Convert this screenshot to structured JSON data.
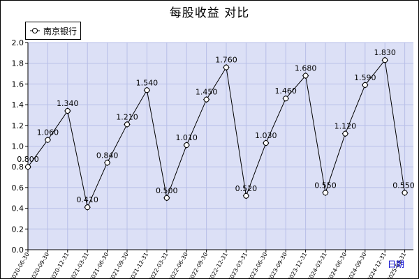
{
  "window": {
    "title": "每股收益  对比"
  },
  "colors": {
    "plot_background": "#dce0f6",
    "grid": "#b8bfe8",
    "line": "#000000",
    "marker_fill": "#ffffff",
    "axis_title": "#0000cc"
  },
  "chart_data": {
    "type": "line",
    "title": "每股收益  对比",
    "xlabel": "日期",
    "ylabel": "",
    "ylim": [
      0.0,
      2.0
    ],
    "yticks": [
      "0.0",
      "0.2",
      "0.4",
      "0.6",
      "0.8",
      "1.0",
      "1.2",
      "1.4",
      "1.6",
      "1.8",
      "2.0"
    ],
    "grid": true,
    "legend_position": "top-left",
    "categories": [
      "2020-06-30",
      "2020-09-30",
      "2020-12-31",
      "2021-03-31",
      "2021-06-30",
      "2021-09-30",
      "2021-12-31",
      "2022-03-31",
      "2022-06-30",
      "2022-09-30",
      "2022-12-31",
      "2023-03-31",
      "2023-06-30",
      "2023-09-30",
      "2023-12-31",
      "2024-03-31",
      "2024-06-30",
      "2024-09-30",
      "2024-12-31",
      "2025-03-31"
    ],
    "series": [
      {
        "name": "南京银行",
        "values": [
          0.8,
          1.06,
          1.34,
          0.41,
          0.84,
          1.21,
          1.54,
          0.5,
          1.01,
          1.45,
          1.76,
          0.52,
          1.03,
          1.46,
          1.68,
          0.55,
          1.12,
          1.59,
          1.83,
          0.55
        ],
        "labels": [
          "0.800",
          "1.060",
          "1.340",
          "0.410",
          "0.840",
          "1.210",
          "1.540",
          "0.500",
          "1.010",
          "1.450",
          "1.760",
          "0.520",
          "1.030",
          "1.460",
          "1.680",
          "0.550",
          "1.120",
          "1.590",
          "1.830",
          "0.550"
        ]
      }
    ]
  }
}
